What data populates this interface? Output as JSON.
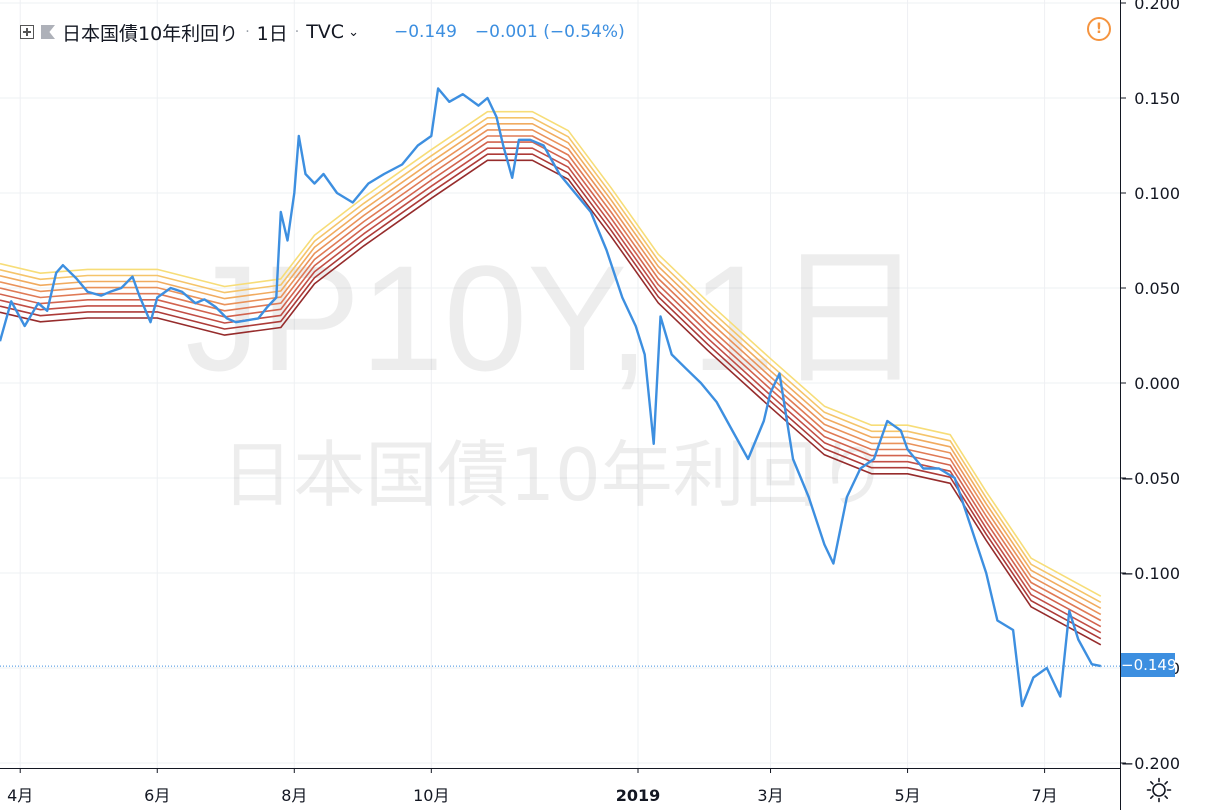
{
  "legend": {
    "symbol_title": "日本国債10年利回り",
    "interval": "1日",
    "source": "TVC",
    "last_value": "−0.149",
    "change": "−0.001 (−0.54%)",
    "sep1": "·",
    "sep2": "·",
    "chevron": "⌄"
  },
  "watermark": {
    "symbol": "JP10Y, 1日",
    "description": "日本国債10年利回り"
  },
  "price_tag": "−0.149",
  "warning_icon_glyph": "!",
  "colors": {
    "price_line": "#3d8fe0",
    "ribbon": [
      "#f7dd78",
      "#f5c46a",
      "#f1ab5f",
      "#ea925a",
      "#e07a55",
      "#d2634e",
      "#c24e45",
      "#ad3b38",
      "#962c2c"
    ],
    "grid": "#eef0f3",
    "axis_text": "#131722",
    "warning": "#f5943f"
  },
  "chart_data": {
    "type": "line",
    "x_axis_ticks": [
      "4月",
      "6月",
      "8月",
      "10月",
      "2019",
      "3月",
      "5月",
      "7月"
    ],
    "y_axis_ticks": [
      "0.200",
      "0.150",
      "0.100",
      "0.050",
      "0.000",
      "−0.050",
      "−0.100",
      "−0.150",
      "−0.200"
    ],
    "y_tick_values": [
      0.2,
      0.15,
      0.1,
      0.05,
      0.0,
      -0.05,
      -0.1,
      -0.15,
      -0.2
    ],
    "x_tick_dates": [
      "2018-04-01",
      "2018-06-01",
      "2018-08-01",
      "2018-10-01",
      "2019-01-01",
      "2019-03-01",
      "2019-05-01",
      "2019-07-01"
    ],
    "x_range": [
      "2018-03-23",
      "2019-07-27"
    ],
    "ylim": [
      -0.2,
      0.2
    ],
    "grid": true,
    "current_value": -0.149,
    "series": [
      {
        "name": "日本国債10年利回り",
        "role": "price",
        "points": [
          [
            "2018-03-23",
            0.022
          ],
          [
            "2018-03-28",
            0.043
          ],
          [
            "2018-04-03",
            0.03
          ],
          [
            "2018-04-09",
            0.042
          ],
          [
            "2018-04-13",
            0.038
          ],
          [
            "2018-04-17",
            0.058
          ],
          [
            "2018-04-20",
            0.062
          ],
          [
            "2018-04-26",
            0.055
          ],
          [
            "2018-05-01",
            0.048
          ],
          [
            "2018-05-07",
            0.046
          ],
          [
            "2018-05-11",
            0.048
          ],
          [
            "2018-05-16",
            0.05
          ],
          [
            "2018-05-21",
            0.056
          ],
          [
            "2018-05-24",
            0.046
          ],
          [
            "2018-05-29",
            0.032
          ],
          [
            "2018-06-01",
            0.045
          ],
          [
            "2018-06-07",
            0.05
          ],
          [
            "2018-06-12",
            0.048
          ],
          [
            "2018-06-18",
            0.042
          ],
          [
            "2018-06-22",
            0.044
          ],
          [
            "2018-06-27",
            0.04
          ],
          [
            "2018-07-02",
            0.034
          ],
          [
            "2018-07-06",
            0.032
          ],
          [
            "2018-07-11",
            0.033
          ],
          [
            "2018-07-16",
            0.034
          ],
          [
            "2018-07-20",
            0.04
          ],
          [
            "2018-07-24",
            0.045
          ],
          [
            "2018-07-26",
            0.09
          ],
          [
            "2018-07-29",
            0.075
          ],
          [
            "2018-08-01",
            0.1
          ],
          [
            "2018-08-03",
            0.13
          ],
          [
            "2018-08-06",
            0.11
          ],
          [
            "2018-08-10",
            0.105
          ],
          [
            "2018-08-14",
            0.11
          ],
          [
            "2018-08-20",
            0.1
          ],
          [
            "2018-08-27",
            0.095
          ],
          [
            "2018-09-03",
            0.105
          ],
          [
            "2018-09-10",
            0.11
          ],
          [
            "2018-09-18",
            0.115
          ],
          [
            "2018-09-25",
            0.125
          ],
          [
            "2018-10-01",
            0.13
          ],
          [
            "2018-10-04",
            0.155
          ],
          [
            "2018-10-09",
            0.148
          ],
          [
            "2018-10-15",
            0.152
          ],
          [
            "2018-10-22",
            0.146
          ],
          [
            "2018-10-26",
            0.15
          ],
          [
            "2018-10-30",
            0.14
          ],
          [
            "2018-11-02",
            0.125
          ],
          [
            "2018-11-06",
            0.108
          ],
          [
            "2018-11-09",
            0.128
          ],
          [
            "2018-11-14",
            0.128
          ],
          [
            "2018-11-20",
            0.125
          ],
          [
            "2018-11-27",
            0.11
          ],
          [
            "2018-12-04",
            0.1
          ],
          [
            "2018-12-11",
            0.09
          ],
          [
            "2018-12-18",
            0.07
          ],
          [
            "2018-12-25",
            0.045
          ],
          [
            "2018-12-31",
            0.03
          ],
          [
            "2019-01-04",
            0.015
          ],
          [
            "2019-01-08",
            -0.032
          ],
          [
            "2019-01-11",
            0.035
          ],
          [
            "2019-01-16",
            0.015
          ],
          [
            "2019-01-22",
            0.008
          ],
          [
            "2019-01-29",
            0.0
          ],
          [
            "2019-02-05",
            -0.01
          ],
          [
            "2019-02-12",
            -0.025
          ],
          [
            "2019-02-19",
            -0.04
          ],
          [
            "2019-02-26",
            -0.02
          ],
          [
            "2019-03-01",
            -0.005
          ],
          [
            "2019-03-05",
            0.005
          ],
          [
            "2019-03-11",
            -0.04
          ],
          [
            "2019-03-18",
            -0.06
          ],
          [
            "2019-03-25",
            -0.085
          ],
          [
            "2019-03-29",
            -0.095
          ],
          [
            "2019-04-04",
            -0.06
          ],
          [
            "2019-04-10",
            -0.045
          ],
          [
            "2019-04-16",
            -0.04
          ],
          [
            "2019-04-22",
            -0.02
          ],
          [
            "2019-04-28",
            -0.025
          ],
          [
            "2019-05-01",
            -0.035
          ],
          [
            "2019-05-08",
            -0.045
          ],
          [
            "2019-05-15",
            -0.045
          ],
          [
            "2019-05-22",
            -0.05
          ],
          [
            "2019-05-29",
            -0.075
          ],
          [
            "2019-06-05",
            -0.1
          ],
          [
            "2019-06-10",
            -0.125
          ],
          [
            "2019-06-17",
            -0.13
          ],
          [
            "2019-06-21",
            -0.17
          ],
          [
            "2019-06-26",
            -0.155
          ],
          [
            "2019-07-02",
            -0.15
          ],
          [
            "2019-07-08",
            -0.165
          ],
          [
            "2019-07-12",
            -0.12
          ],
          [
            "2019-07-16",
            -0.135
          ],
          [
            "2019-07-22",
            -0.148
          ],
          [
            "2019-07-26",
            -0.149
          ]
        ]
      },
      {
        "name": "ribbon",
        "role": "moving-average-ribbon",
        "points": [
          [
            "2018-03-23",
            0.05
          ],
          [
            "2018-04-10",
            0.045
          ],
          [
            "2018-05-01",
            0.047
          ],
          [
            "2018-06-01",
            0.047
          ],
          [
            "2018-07-01",
            0.038
          ],
          [
            "2018-07-26",
            0.042
          ],
          [
            "2018-08-10",
            0.065
          ],
          [
            "2018-09-01",
            0.085
          ],
          [
            "2018-10-01",
            0.11
          ],
          [
            "2018-10-26",
            0.13
          ],
          [
            "2018-11-15",
            0.13
          ],
          [
            "2018-12-01",
            0.12
          ],
          [
            "2018-12-20",
            0.09
          ],
          [
            "2019-01-10",
            0.055
          ],
          [
            "2019-02-01",
            0.03
          ],
          [
            "2019-03-01",
            0.0
          ],
          [
            "2019-03-25",
            -0.025
          ],
          [
            "2019-04-15",
            -0.035
          ],
          [
            "2019-05-01",
            -0.035
          ],
          [
            "2019-05-20",
            -0.04
          ],
          [
            "2019-06-05",
            -0.07
          ],
          [
            "2019-06-25",
            -0.105
          ],
          [
            "2019-07-26",
            -0.125
          ]
        ]
      }
    ]
  }
}
